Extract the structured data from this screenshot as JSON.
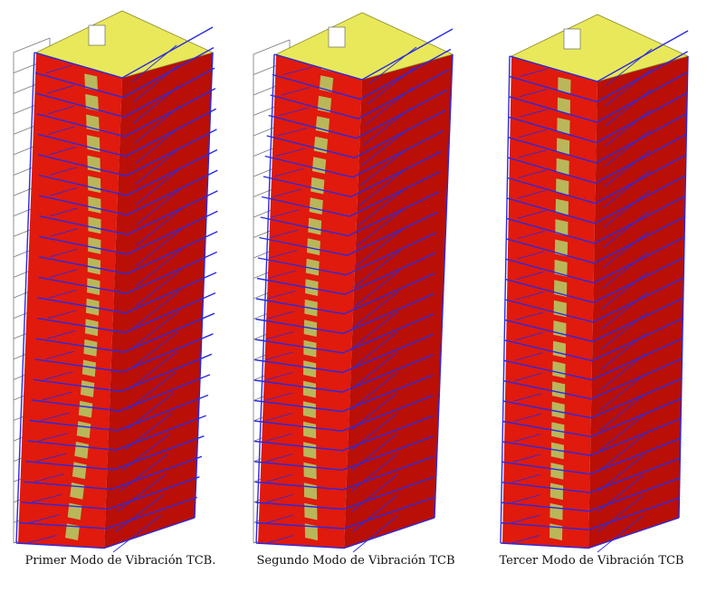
{
  "captions": [
    "Primer Modo de Vibración TCB.",
    "Segundo Modo de Vibración TCB",
    "Tercer Modo de Vibración TCB"
  ],
  "colors": {
    "roof": "#e8e85a",
    "facade": "#e01a0c",
    "facade_dark": "#b90f07",
    "shaft": "#b9b75a",
    "mode_shape": "#2a2ae0",
    "undeformed": "#777777"
  },
  "icons": [
    "building-mode-1",
    "building-mode-2",
    "building-mode-3"
  ]
}
